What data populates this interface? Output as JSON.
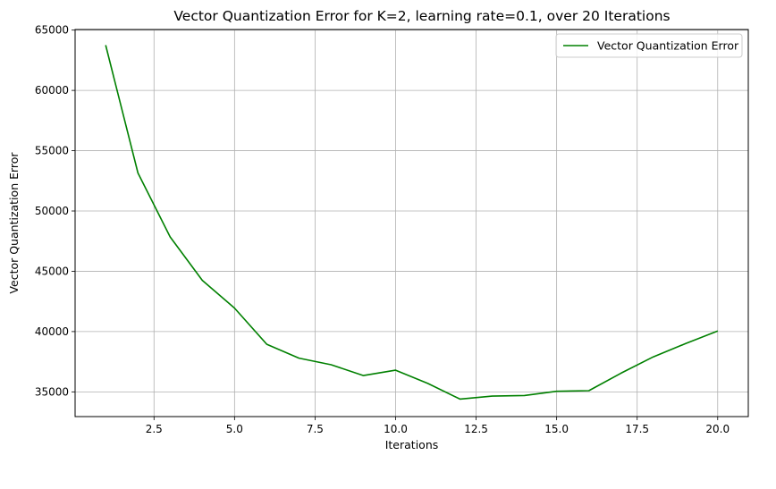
{
  "chart_data": {
    "type": "line",
    "title": "Vector Quantization Error for K=2, learning rate=0.1, over 20 Iterations",
    "xlabel": "Iterations",
    "ylabel": "Vector Quantization Error",
    "xlim": [
      0.05,
      20.95
    ],
    "ylim": [
      32950,
      65050
    ],
    "xticks": [
      2.5,
      5.0,
      7.5,
      10.0,
      12.5,
      15.0,
      17.5,
      20.0
    ],
    "xtick_labels": [
      "2.5",
      "5.0",
      "7.5",
      "10.0",
      "12.5",
      "15.0",
      "17.5",
      "20.0"
    ],
    "yticks": [
      35000,
      40000,
      45000,
      50000,
      55000,
      60000,
      65000
    ],
    "ytick_labels": [
      "35000",
      "40000",
      "45000",
      "50000",
      "55000",
      "60000",
      "65000"
    ],
    "grid": true,
    "legend_position": "top-right",
    "series": [
      {
        "name": "Vector Quantization Error",
        "color": "#008000",
        "x": [
          1,
          2,
          3,
          4,
          5,
          6,
          7,
          8,
          9,
          10,
          11,
          12,
          13,
          14,
          15,
          16,
          17,
          18,
          19,
          20
        ],
        "y": [
          63750,
          53150,
          47850,
          44250,
          41950,
          38950,
          37800,
          37250,
          36350,
          36800,
          35700,
          34400,
          34650,
          34700,
          35050,
          35100,
          36550,
          37900,
          39000,
          40050
        ]
      }
    ]
  }
}
